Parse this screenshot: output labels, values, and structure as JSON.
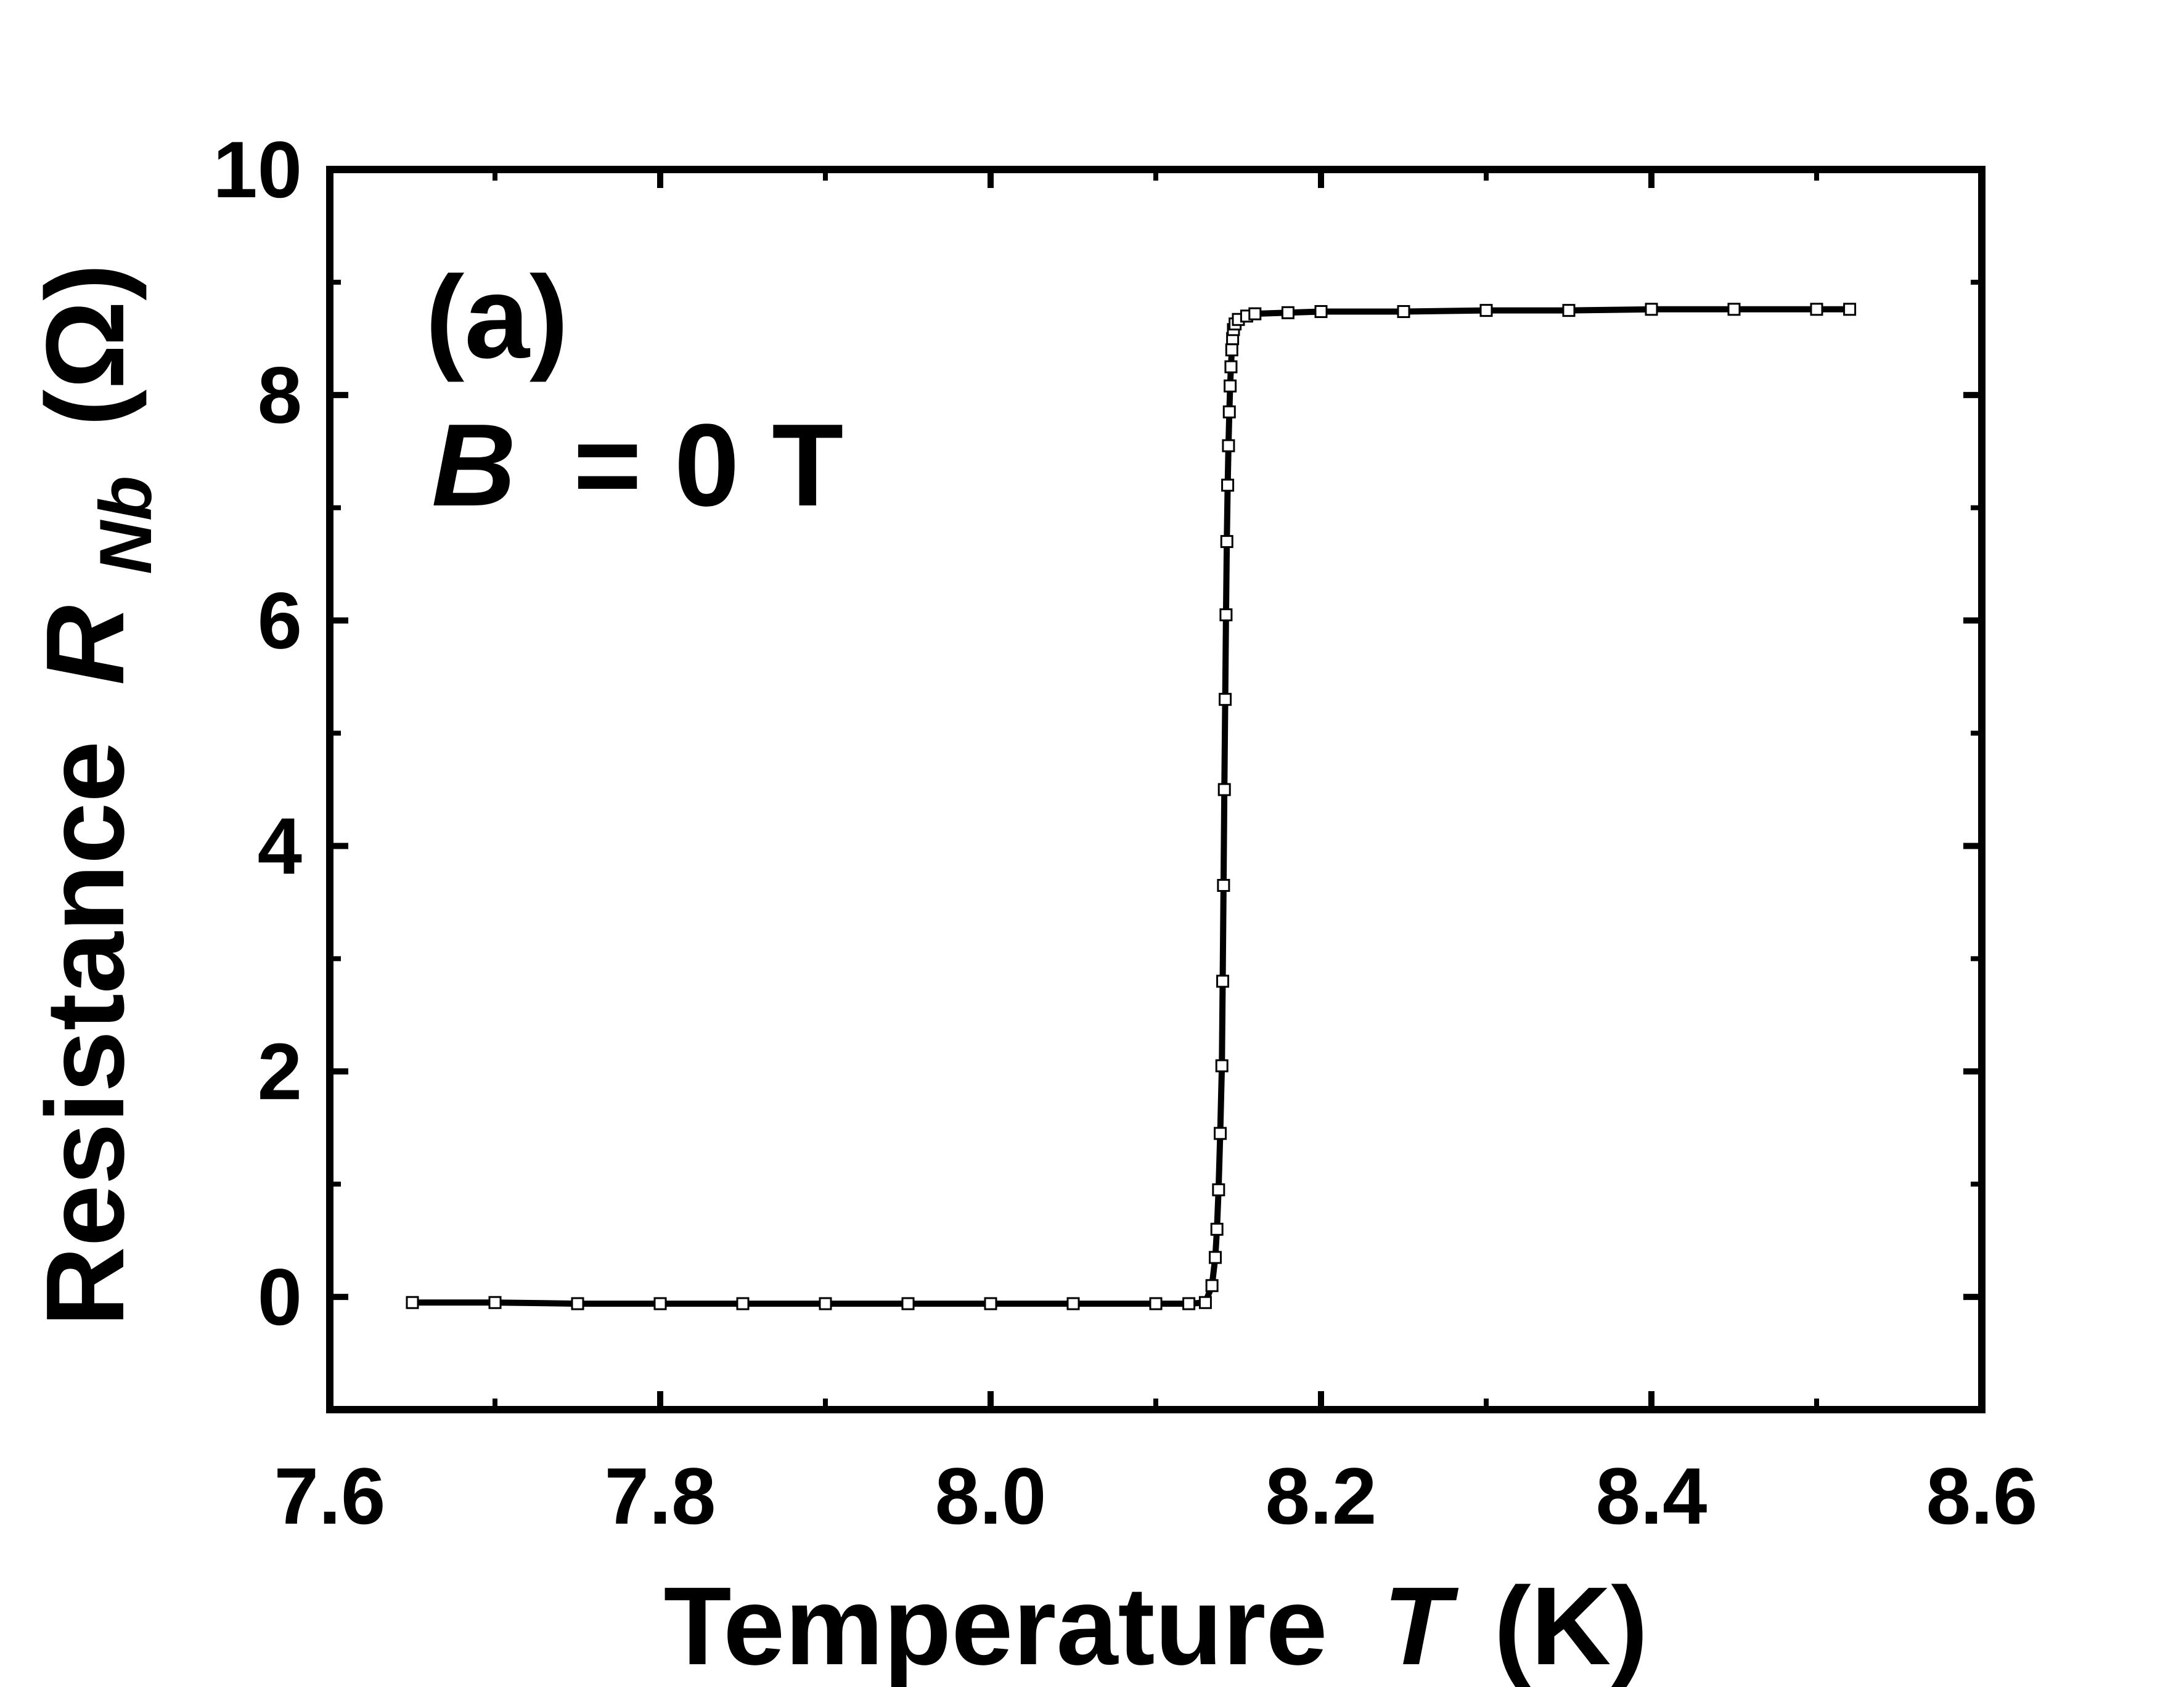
{
  "chart_data": {
    "type": "scatter",
    "xlabel": {
      "main": "Temperature",
      "var": "T",
      "unit": "(K)"
    },
    "ylabel": {
      "main": "Resistance",
      "var": "R",
      "sub": "Nb",
      "unit": "(Ω)"
    },
    "annotation_panel": "(a)",
    "annotation_field": {
      "var": "B",
      "rest": "= 0 T"
    },
    "xlim": [
      7.6,
      8.6
    ],
    "ylim": [
      -1,
      10
    ],
    "xticks": [
      "7.6",
      "7.8",
      "8.0",
      "8.2",
      "8.4",
      "8.6"
    ],
    "yticks": [
      "0",
      "2",
      "4",
      "6",
      "8",
      "10"
    ],
    "grid": false,
    "marker": "open-square",
    "series": [
      {
        "x": [
          7.65,
          7.7,
          7.75,
          7.8,
          7.85,
          7.9,
          7.95,
          8.0,
          8.05,
          8.1,
          8.12,
          8.13,
          8.134,
          8.136,
          8.137,
          8.138,
          8.139,
          8.14,
          8.1405,
          8.141,
          8.1415,
          8.142,
          8.1425,
          8.143,
          8.1435,
          8.144,
          8.1445,
          8.145,
          8.1455,
          8.146,
          8.1465,
          8.147,
          8.148,
          8.15,
          8.155,
          8.16,
          8.18,
          8.2,
          8.25,
          8.3,
          8.35,
          8.4,
          8.45,
          8.5,
          8.52
        ],
        "y": [
          -0.05,
          -0.05,
          -0.06,
          -0.06,
          -0.06,
          -0.06,
          -0.06,
          -0.06,
          -0.06,
          -0.06,
          -0.06,
          -0.05,
          0.1,
          0.35,
          0.6,
          0.95,
          1.45,
          2.05,
          2.8,
          3.65,
          4.5,
          5.3,
          6.05,
          6.7,
          7.2,
          7.55,
          7.85,
          8.08,
          8.25,
          8.4,
          8.5,
          8.58,
          8.63,
          8.67,
          8.7,
          8.72,
          8.73,
          8.74,
          8.74,
          8.75,
          8.75,
          8.76,
          8.76,
          8.76,
          8.76
        ]
      }
    ]
  }
}
